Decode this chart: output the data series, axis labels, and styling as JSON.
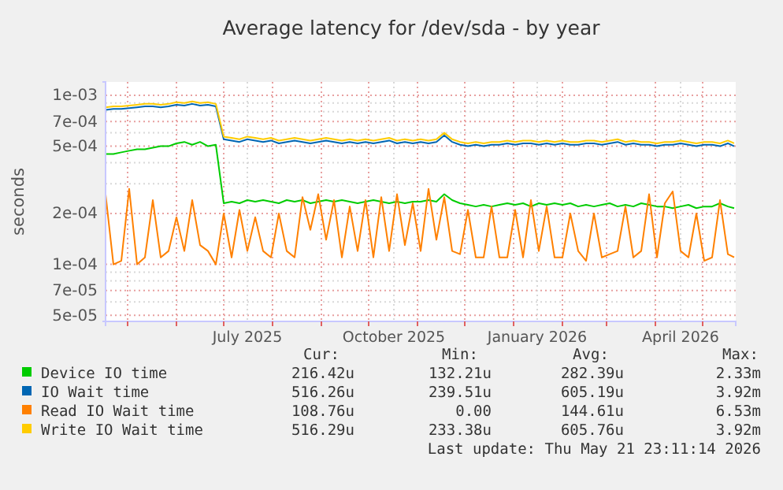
{
  "chart_data": {
    "type": "line",
    "title": "Average latency for /dev/sda - by year",
    "ylabel": "seconds",
    "log": true,
    "grid": true,
    "legend": "bottom",
    "xlim": [
      "2025-04-17",
      "2026-05-22"
    ],
    "xticks": [
      {
        "value": "2025-05-01",
        "label": null
      },
      {
        "value": "2025-06-01",
        "label": null
      },
      {
        "value": "2025-07-01",
        "label": null
      },
      {
        "value": "2025-07-16",
        "label": "July 2025"
      },
      {
        "value": "2025-08-01",
        "label": null
      },
      {
        "value": "2025-09-01",
        "label": null
      },
      {
        "value": "2025-10-01",
        "label": null
      },
      {
        "value": "2025-10-17",
        "label": "October 2025"
      },
      {
        "value": "2025-11-01",
        "label": null
      },
      {
        "value": "2025-12-01",
        "label": null
      },
      {
        "value": "2026-01-01",
        "label": null
      },
      {
        "value": "2026-01-16",
        "label": "January 2026"
      },
      {
        "value": "2026-02-01",
        "label": null
      },
      {
        "value": "2026-03-01",
        "label": null
      },
      {
        "value": "2026-04-01",
        "label": null
      },
      {
        "value": "2026-04-17",
        "label": "April 2026"
      },
      {
        "value": "2026-05-01",
        "label": null
      }
    ],
    "ylim": [
      4.6e-05,
      0.0012
    ],
    "yticks": [
      {
        "value": 5e-05,
        "label": "5e-05"
      },
      {
        "value": 6e-05,
        "label": null
      },
      {
        "value": 7e-05,
        "label": "7e-05"
      },
      {
        "value": 8e-05,
        "label": null
      },
      {
        "value": 9e-05,
        "label": null
      },
      {
        "value": 0.0001,
        "label": "1e-04"
      },
      {
        "value": 0.0002,
        "label": "2e-04"
      },
      {
        "value": 0.0003,
        "label": null
      },
      {
        "value": 0.0004,
        "label": null
      },
      {
        "value": 0.0005,
        "label": "5e-04"
      },
      {
        "value": 0.0006,
        "label": null
      },
      {
        "value": 0.0007,
        "label": "7e-04"
      },
      {
        "value": 0.0008,
        "label": null
      },
      {
        "value": 0.0009,
        "label": null
      },
      {
        "value": 0.001,
        "label": "1e-03"
      }
    ],
    "x": [
      "2025-04-17",
      "2025-04-22",
      "2025-04-27",
      "2025-05-02",
      "2025-05-07",
      "2025-05-12",
      "2025-05-17",
      "2025-05-22",
      "2025-05-27",
      "2025-06-01",
      "2025-06-06",
      "2025-06-11",
      "2025-06-16",
      "2025-06-21",
      "2025-06-26",
      "2025-07-01",
      "2025-07-06",
      "2025-07-11",
      "2025-07-16",
      "2025-07-21",
      "2025-07-26",
      "2025-07-31",
      "2025-08-05",
      "2025-08-10",
      "2025-08-15",
      "2025-08-20",
      "2025-08-25",
      "2025-08-30",
      "2025-09-04",
      "2025-09-09",
      "2025-09-14",
      "2025-09-19",
      "2025-09-24",
      "2025-09-29",
      "2025-10-04",
      "2025-10-09",
      "2025-10-14",
      "2025-10-19",
      "2025-10-24",
      "2025-10-29",
      "2025-11-03",
      "2025-11-08",
      "2025-11-13",
      "2025-11-18",
      "2025-11-23",
      "2025-11-28",
      "2025-12-03",
      "2025-12-08",
      "2025-12-13",
      "2025-12-18",
      "2025-12-23",
      "2025-12-28",
      "2026-01-02",
      "2026-01-07",
      "2026-01-12",
      "2026-01-17",
      "2026-01-22",
      "2026-01-27",
      "2026-02-01",
      "2026-02-06",
      "2026-02-11",
      "2026-02-16",
      "2026-02-21",
      "2026-02-26",
      "2026-03-03",
      "2026-03-08",
      "2026-03-13",
      "2026-03-18",
      "2026-03-23",
      "2026-03-28",
      "2026-04-02",
      "2026-04-07",
      "2026-04-12",
      "2026-04-17",
      "2026-04-22",
      "2026-04-27",
      "2026-05-02",
      "2026-05-07",
      "2026-05-12",
      "2026-05-17",
      "2026-05-21"
    ],
    "series": [
      {
        "name": "Device IO time",
        "color": "#00cc00",
        "values": [
          0.00045,
          0.00045,
          0.00046,
          0.00047,
          0.00048,
          0.00048,
          0.00049,
          0.0005,
          0.0005,
          0.00052,
          0.00053,
          0.00051,
          0.00053,
          0.0005,
          0.00051,
          0.00023,
          0.000235,
          0.00023,
          0.00024,
          0.000235,
          0.00024,
          0.000235,
          0.00023,
          0.00024,
          0.000235,
          0.00024,
          0.00023,
          0.000235,
          0.00024,
          0.000235,
          0.00024,
          0.000235,
          0.00023,
          0.000235,
          0.00024,
          0.000235,
          0.00023,
          0.000235,
          0.00023,
          0.000235,
          0.000235,
          0.00024,
          0.000235,
          0.00026,
          0.00024,
          0.00023,
          0.000225,
          0.00022,
          0.000225,
          0.00022,
          0.000225,
          0.00023,
          0.000225,
          0.00023,
          0.00022,
          0.00023,
          0.000225,
          0.00023,
          0.000225,
          0.00023,
          0.00022,
          0.000225,
          0.00022,
          0.000225,
          0.00023,
          0.00022,
          0.000225,
          0.00022,
          0.00023,
          0.000225,
          0.00022,
          0.00022,
          0.000215,
          0.00022,
          0.000225,
          0.000215,
          0.00022,
          0.00022,
          0.00023,
          0.00022,
          0.000215
        ]
      },
      {
        "name": "IO Wait time",
        "color": "#0066b3",
        "values": [
          0.00082,
          0.00083,
          0.00083,
          0.00084,
          0.00085,
          0.00086,
          0.00086,
          0.00085,
          0.00086,
          0.00088,
          0.00087,
          0.00089,
          0.00087,
          0.00088,
          0.00086,
          0.00055,
          0.00054,
          0.00053,
          0.00055,
          0.00054,
          0.00053,
          0.00054,
          0.00052,
          0.00053,
          0.00054,
          0.00053,
          0.00052,
          0.00053,
          0.00054,
          0.00053,
          0.00052,
          0.00053,
          0.00052,
          0.00053,
          0.00052,
          0.00053,
          0.00054,
          0.00052,
          0.00053,
          0.00052,
          0.00053,
          0.00052,
          0.00053,
          0.00058,
          0.00053,
          0.00051,
          0.0005,
          0.00051,
          0.0005,
          0.00051,
          0.00051,
          0.00052,
          0.00051,
          0.00052,
          0.00052,
          0.00051,
          0.00052,
          0.00051,
          0.00052,
          0.00051,
          0.00051,
          0.00052,
          0.00052,
          0.00051,
          0.00052,
          0.00053,
          0.00051,
          0.00052,
          0.00051,
          0.00051,
          0.0005,
          0.00051,
          0.00051,
          0.00052,
          0.00051,
          0.0005,
          0.00051,
          0.00051,
          0.0005,
          0.00052,
          0.0005
        ]
      },
      {
        "name": "Read IO Wait time",
        "color": "#ff8000",
        "values": [
          0.00026,
          0.0001,
          0.000105,
          0.00028,
          0.0001,
          0.00011,
          0.00024,
          0.00011,
          0.00012,
          0.00019,
          0.00012,
          0.00024,
          0.00013,
          0.00012,
          0.0001,
          0.0002,
          0.00011,
          0.00021,
          0.00012,
          0.00019,
          0.00012,
          0.00011,
          0.0002,
          0.00012,
          0.00011,
          0.00025,
          0.00016,
          0.00026,
          0.00014,
          0.00024,
          0.00011,
          0.00022,
          0.00012,
          0.00024,
          0.00011,
          0.00025,
          0.00012,
          0.00026,
          0.00013,
          0.00023,
          0.00012,
          0.00028,
          0.00014,
          0.00025,
          0.00012,
          0.000115,
          0.00021,
          0.00011,
          0.00011,
          0.00022,
          0.00011,
          0.00011,
          0.00021,
          0.00011,
          0.00024,
          0.00012,
          0.00022,
          0.00011,
          0.00011,
          0.0002,
          0.00012,
          0.000105,
          0.0002,
          0.00011,
          0.000115,
          0.00012,
          0.00022,
          0.00011,
          0.00012,
          0.00026,
          0.00011,
          0.00023,
          0.00027,
          0.00012,
          0.00011,
          0.0002,
          0.000105,
          0.00011,
          0.00024,
          0.000115,
          0.00011
        ]
      },
      {
        "name": "Write IO Wait time",
        "color": "#ffcc00",
        "values": [
          0.00085,
          0.00086,
          0.00086,
          0.00087,
          0.00088,
          0.00089,
          0.00089,
          0.00088,
          0.00089,
          0.00091,
          0.0009,
          0.00092,
          0.0009,
          0.00091,
          0.00089,
          0.00057,
          0.00056,
          0.00055,
          0.00057,
          0.00056,
          0.00055,
          0.00056,
          0.00054,
          0.00055,
          0.00056,
          0.00055,
          0.00054,
          0.00055,
          0.00056,
          0.00055,
          0.00054,
          0.00055,
          0.00054,
          0.00055,
          0.00054,
          0.00055,
          0.00056,
          0.00054,
          0.00055,
          0.00054,
          0.00055,
          0.00054,
          0.00055,
          0.0006,
          0.00055,
          0.00053,
          0.00052,
          0.00053,
          0.00052,
          0.00053,
          0.00053,
          0.00054,
          0.00053,
          0.00054,
          0.00054,
          0.00053,
          0.00054,
          0.00053,
          0.00054,
          0.00053,
          0.00053,
          0.00054,
          0.00054,
          0.00053,
          0.00054,
          0.00055,
          0.00053,
          0.00054,
          0.00053,
          0.00053,
          0.00052,
          0.00053,
          0.00053,
          0.00054,
          0.00053,
          0.00052,
          0.00053,
          0.00053,
          0.00052,
          0.00054,
          0.00052
        ]
      }
    ],
    "annotations": [
      "Cur:",
      "Min:",
      "Avg:",
      "Max:",
      "216.42u",
      "132.21u",
      "282.39u",
      "2.33m",
      "516.26u",
      "239.51u",
      "605.19u",
      "3.92m",
      "108.76u",
      "0.00",
      "144.61u",
      "6.53m",
      "516.29u",
      "233.38u",
      "605.76u",
      "3.92m",
      "Last update: Thu May 21 23:11:14 2026"
    ]
  }
}
